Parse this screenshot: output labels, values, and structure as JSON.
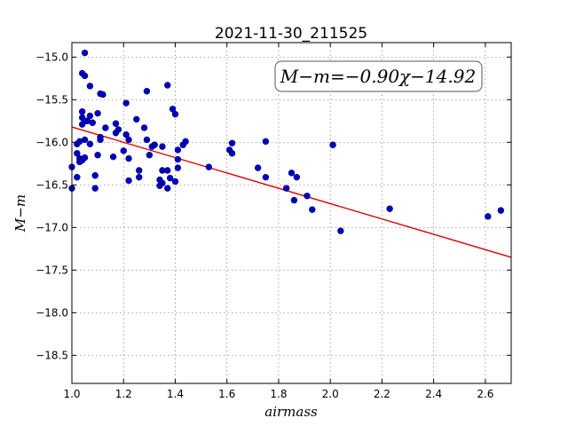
{
  "chart_data": {
    "type": "scatter",
    "title": "2021-11-30_211525",
    "xlabel": "airmass",
    "ylabel": "M−m",
    "xlim": [
      1.0,
      2.7
    ],
    "ylim": [
      -18.83,
      -14.83
    ],
    "y_inverted": true,
    "grid": true,
    "x_ticks": [
      1.0,
      1.2,
      1.4,
      1.6,
      1.8,
      2.0,
      2.2,
      2.4,
      2.6
    ],
    "x_tick_labels": [
      "1.0",
      "1.2",
      "1.4",
      "1.6",
      "1.8",
      "2.0",
      "2.2",
      "2.4",
      "2.6"
    ],
    "y_ticks": [
      -15.0,
      -15.5,
      -16.0,
      -16.5,
      -17.0,
      -17.5,
      -18.0,
      -18.5
    ],
    "y_tick_labels": [
      "−15.0",
      "−15.5",
      "−16.0",
      "−16.5",
      "−17.0",
      "−17.5",
      "−18.0",
      "−18.5"
    ],
    "annotation": "M−m=−0.90χ−14.92",
    "fit": {
      "slope": -0.9,
      "intercept": -14.92,
      "color": "#dd0000"
    },
    "point_color": "#0000bf",
    "points": [
      [
        1.0,
        -16.54
      ],
      [
        1.0,
        -16.29
      ],
      [
        1.02,
        -16.13
      ],
      [
        1.02,
        -16.02
      ],
      [
        1.02,
        -16.41
      ],
      [
        1.03,
        -16.19
      ],
      [
        1.03,
        -16.23
      ],
      [
        1.03,
        -15.99
      ],
      [
        1.04,
        -15.19
      ],
      [
        1.04,
        -15.64
      ],
      [
        1.04,
        -15.71
      ],
      [
        1.04,
        -15.79
      ],
      [
        1.04,
        -16.21
      ],
      [
        1.05,
        -14.95
      ],
      [
        1.05,
        -15.22
      ],
      [
        1.05,
        -15.75
      ],
      [
        1.05,
        -15.97
      ],
      [
        1.05,
        -16.18
      ],
      [
        1.06,
        -15.75
      ],
      [
        1.07,
        -15.34
      ],
      [
        1.07,
        -16.02
      ],
      [
        1.07,
        -15.69
      ],
      [
        1.08,
        -15.77
      ],
      [
        1.09,
        -16.39
      ],
      [
        1.09,
        -16.54
      ],
      [
        1.1,
        -15.66
      ],
      [
        1.1,
        -16.15
      ],
      [
        1.11,
        -15.94
      ],
      [
        1.11,
        -15.97
      ],
      [
        1.11,
        -15.43
      ],
      [
        1.12,
        -15.44
      ],
      [
        1.13,
        -15.83
      ],
      [
        1.16,
        -16.17
      ],
      [
        1.17,
        -15.78
      ],
      [
        1.17,
        -15.89
      ],
      [
        1.18,
        -15.85
      ],
      [
        1.2,
        -16.1
      ],
      [
        1.21,
        -15.54
      ],
      [
        1.21,
        -15.91
      ],
      [
        1.22,
        -16.19
      ],
      [
        1.22,
        -15.97
      ],
      [
        1.22,
        -16.45
      ],
      [
        1.25,
        -15.73
      ],
      [
        1.26,
        -16.33
      ],
      [
        1.26,
        -16.41
      ],
      [
        1.28,
        -15.83
      ],
      [
        1.29,
        -15.97
      ],
      [
        1.29,
        -15.4
      ],
      [
        1.3,
        -16.15
      ],
      [
        1.31,
        -16.05
      ],
      [
        1.32,
        -16.03
      ],
      [
        1.34,
        -16.44
      ],
      [
        1.34,
        -16.51
      ],
      [
        1.35,
        -16.48
      ],
      [
        1.35,
        -16.33
      ],
      [
        1.35,
        -16.05
      ],
      [
        1.37,
        -16.54
      ],
      [
        1.37,
        -15.33
      ],
      [
        1.37,
        -16.33
      ],
      [
        1.38,
        -16.42
      ],
      [
        1.39,
        -15.61
      ],
      [
        1.4,
        -15.67
      ],
      [
        1.4,
        -16.46
      ],
      [
        1.41,
        -16.3
      ],
      [
        1.41,
        -16.2
      ],
      [
        1.41,
        -16.09
      ],
      [
        1.43,
        -16.03
      ],
      [
        1.44,
        -15.99
      ],
      [
        1.53,
        -16.29
      ],
      [
        1.61,
        -16.09
      ],
      [
        1.62,
        -16.13
      ],
      [
        1.62,
        -16.01
      ],
      [
        1.72,
        -16.3
      ],
      [
        1.75,
        -15.99
      ],
      [
        1.75,
        -16.41
      ],
      [
        1.83,
        -16.54
      ],
      [
        1.85,
        -16.36
      ],
      [
        1.86,
        -16.68
      ],
      [
        1.87,
        -16.41
      ],
      [
        1.91,
        -16.63
      ],
      [
        1.93,
        -16.79
      ],
      [
        2.01,
        -16.03
      ],
      [
        2.04,
        -17.04
      ],
      [
        2.23,
        -16.78
      ],
      [
        2.61,
        -16.87
      ],
      [
        2.66,
        -16.8
      ]
    ]
  }
}
